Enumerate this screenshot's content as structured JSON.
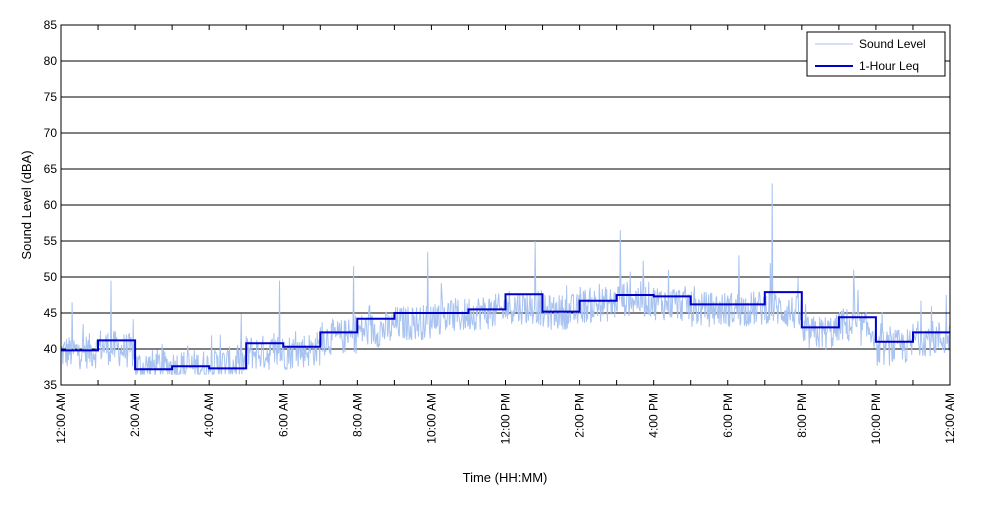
{
  "chart_data": {
    "type": "line",
    "title": "",
    "xlabel": "Time (HH:MM)",
    "ylabel": "Sound Level (dBA)",
    "ylim": [
      35,
      85
    ],
    "xlim": [
      0,
      24
    ],
    "y_ticks": [
      35,
      40,
      45,
      50,
      55,
      60,
      65,
      70,
      75,
      80,
      85
    ],
    "x_tick_labels": [
      "12:00 AM",
      "2:00 AM",
      "4:00 AM",
      "6:00 AM",
      "8:00 AM",
      "10:00 AM",
      "12:00 PM",
      "2:00 PM",
      "4:00 PM",
      "6:00 PM",
      "8:00 PM",
      "10:00 PM",
      "12:00 AM"
    ],
    "x_tick_hours": [
      0,
      2,
      4,
      6,
      8,
      10,
      12,
      14,
      16,
      18,
      20,
      22,
      24
    ],
    "grid": "horizontal",
    "legend_position": "top-right",
    "colors": {
      "sound_level": "#a9c3f0",
      "leq": "#0000cc"
    },
    "series": [
      {
        "name": "Sound Level",
        "style": "thin-line",
        "hourly_baseline": [
          39.5,
          40.5,
          37.5,
          37.5,
          37.5,
          39.5,
          39.5,
          41.5,
          42.5,
          43.5,
          44.5,
          45.0,
          46.0,
          45.0,
          46.0,
          47.0,
          46.5,
          45.5,
          45.5,
          46.0,
          42.0,
          43.5,
          40.0,
          41.5
        ],
        "peaks": [
          {
            "hour": 0.3,
            "value": 46.5
          },
          {
            "hour": 1.35,
            "value": 49.5
          },
          {
            "hour": 4.3,
            "value": 42.0
          },
          {
            "hour": 5.9,
            "value": 49.5
          },
          {
            "hour": 7.9,
            "value": 51.5
          },
          {
            "hour": 9.9,
            "value": 53.5
          },
          {
            "hour": 12.8,
            "value": 55.0
          },
          {
            "hour": 15.1,
            "value": 56.5
          },
          {
            "hour": 16.4,
            "value": 51.0
          },
          {
            "hour": 18.3,
            "value": 53.0
          },
          {
            "hour": 19.2,
            "value": 63.0
          },
          {
            "hour": 21.4,
            "value": 51.0
          },
          {
            "hour": 23.9,
            "value": 47.5
          }
        ]
      },
      {
        "name": "1-Hour Leq",
        "style": "step",
        "hours": [
          0,
          1,
          2,
          3,
          4,
          5,
          6,
          7,
          8,
          9,
          10,
          11,
          12,
          13,
          14,
          15,
          16,
          17,
          18,
          19,
          20,
          21,
          22,
          23
        ],
        "values": [
          39.8,
          41.2,
          37.2,
          37.6,
          37.3,
          40.8,
          40.3,
          42.3,
          44.2,
          45.0,
          45.0,
          45.5,
          47.6,
          45.2,
          46.7,
          47.5,
          47.3,
          46.2,
          46.2,
          47.9,
          43.0,
          44.4,
          41.0,
          42.3
        ]
      }
    ]
  }
}
